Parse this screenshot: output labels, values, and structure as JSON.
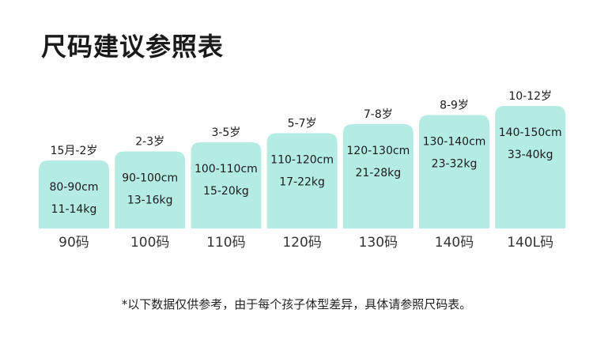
{
  "title": "尺码建议参照表",
  "footnote": "*以下数据仅供参考，由于每个孩子体型差异，具体请参照尺码表。",
  "colors": {
    "bar": "#b4ece4",
    "text": "#1a1a1a",
    "baseline": "#cccccc"
  },
  "chart_data": {
    "type": "bar",
    "categories": [
      "90码",
      "100码",
      "110码",
      "120码",
      "130码",
      "140码",
      "140L码"
    ],
    "age_labels": [
      "15月-2岁",
      "2-3岁",
      "3-5岁",
      "5-7岁",
      "7-8岁",
      "8-9岁",
      "10-12岁"
    ],
    "height_labels": [
      "80-90cm",
      "90-100cm",
      "100-110cm",
      "110-120cm",
      "120-130cm",
      "130-140cm",
      "140-150cm"
    ],
    "weight_labels": [
      "11-14kg",
      "13-16kg",
      "15-20kg",
      "17-22kg",
      "21-28kg",
      "23-32kg",
      "33-40kg"
    ],
    "values": [
      90,
      100,
      110,
      120,
      130,
      140,
      150
    ]
  }
}
